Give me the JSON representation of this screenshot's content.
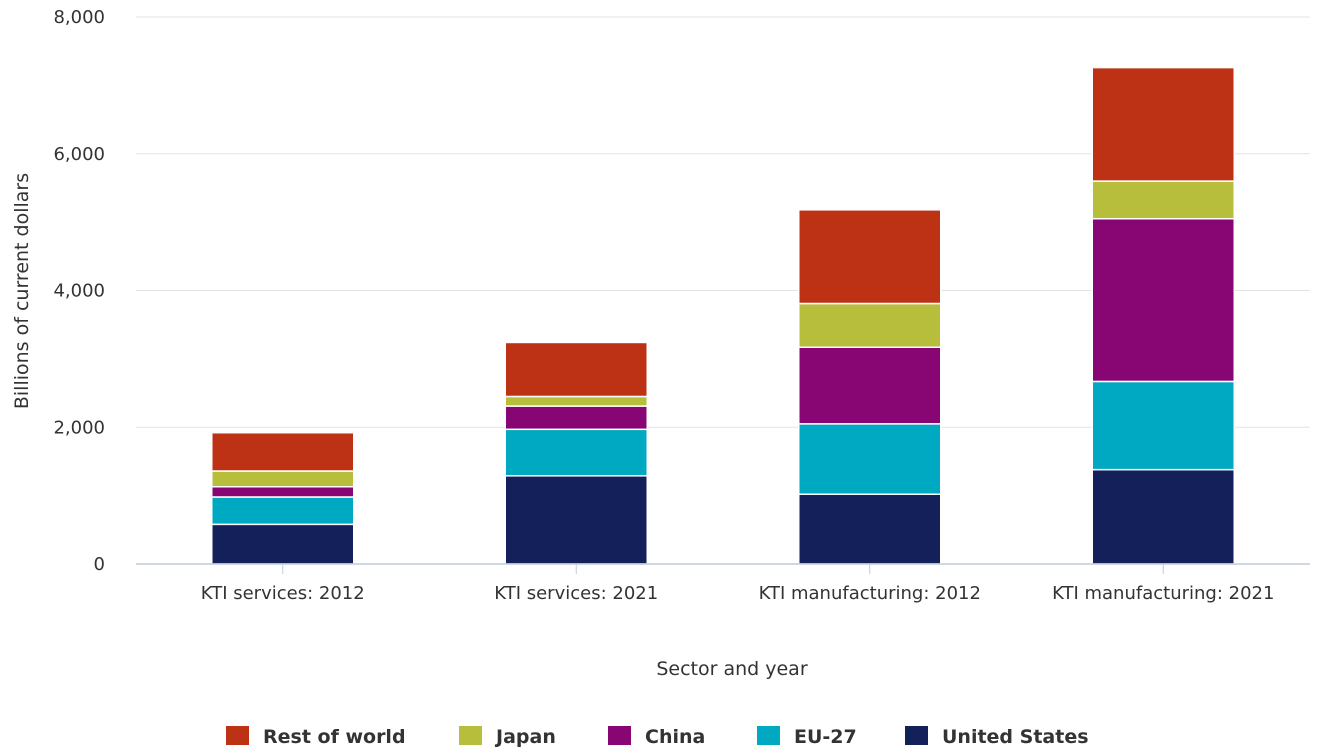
{
  "chart_data": {
    "type": "bar",
    "stacked": true,
    "title": "",
    "xlabel": "Sector and year",
    "ylabel": "Billions of current dollars",
    "ylim": [
      0,
      8000
    ],
    "yticks": [
      "0",
      "2,000",
      "4,000",
      "6,000",
      "8,000"
    ],
    "yticks_values": [
      0,
      2000,
      4000,
      6000,
      8000
    ],
    "grid": "horizontal",
    "legend_position": "bottom",
    "categories": [
      "KTI services: 2012",
      "KTI services: 2021",
      "KTI manufacturing: 2012",
      "KTI manufacturing: 2021"
    ],
    "series": [
      {
        "name": "United States",
        "color": "#13205a",
        "values": [
          580,
          1290,
          1020,
          1380
        ]
      },
      {
        "name": "EU-27",
        "color": "#00a9c2",
        "values": [
          400,
          680,
          1030,
          1290
        ]
      },
      {
        "name": "China",
        "color": "#870674",
        "values": [
          150,
          340,
          1120,
          2380
        ]
      },
      {
        "name": "Japan",
        "color": "#b7be3c",
        "values": [
          230,
          140,
          640,
          550
        ]
      },
      {
        "name": "Rest of world",
        "color": "#bd3115",
        "values": [
          560,
          790,
          1370,
          1660
        ]
      }
    ],
    "legend_order": [
      "Rest of world",
      "Japan",
      "China",
      "EU-27",
      "United States"
    ]
  }
}
